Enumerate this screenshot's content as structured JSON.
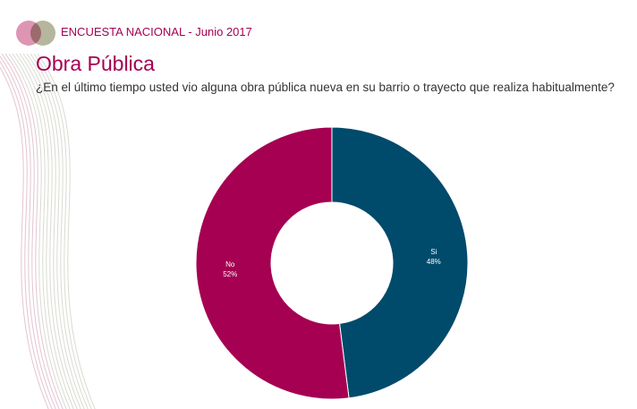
{
  "header": {
    "survey_label": "ENCUESTA NACIONAL - Junio 2017",
    "title": "Obra Pública",
    "question": "¿En el último tiempo usted vio alguna obra pública nueva en su barrio o trayecto que realiza habitualmente?"
  },
  "colors": {
    "accent": "#a50052",
    "si": "#004a6b",
    "no": "#a50052",
    "logo_pink": "#d98aab",
    "logo_olive": "#a8a98c"
  },
  "chart_data": {
    "type": "pie",
    "variant": "donut",
    "slices": [
      {
        "label": "Si",
        "value": 48,
        "display": "48%"
      },
      {
        "label": "No",
        "value": 52,
        "display": "52%"
      }
    ]
  }
}
